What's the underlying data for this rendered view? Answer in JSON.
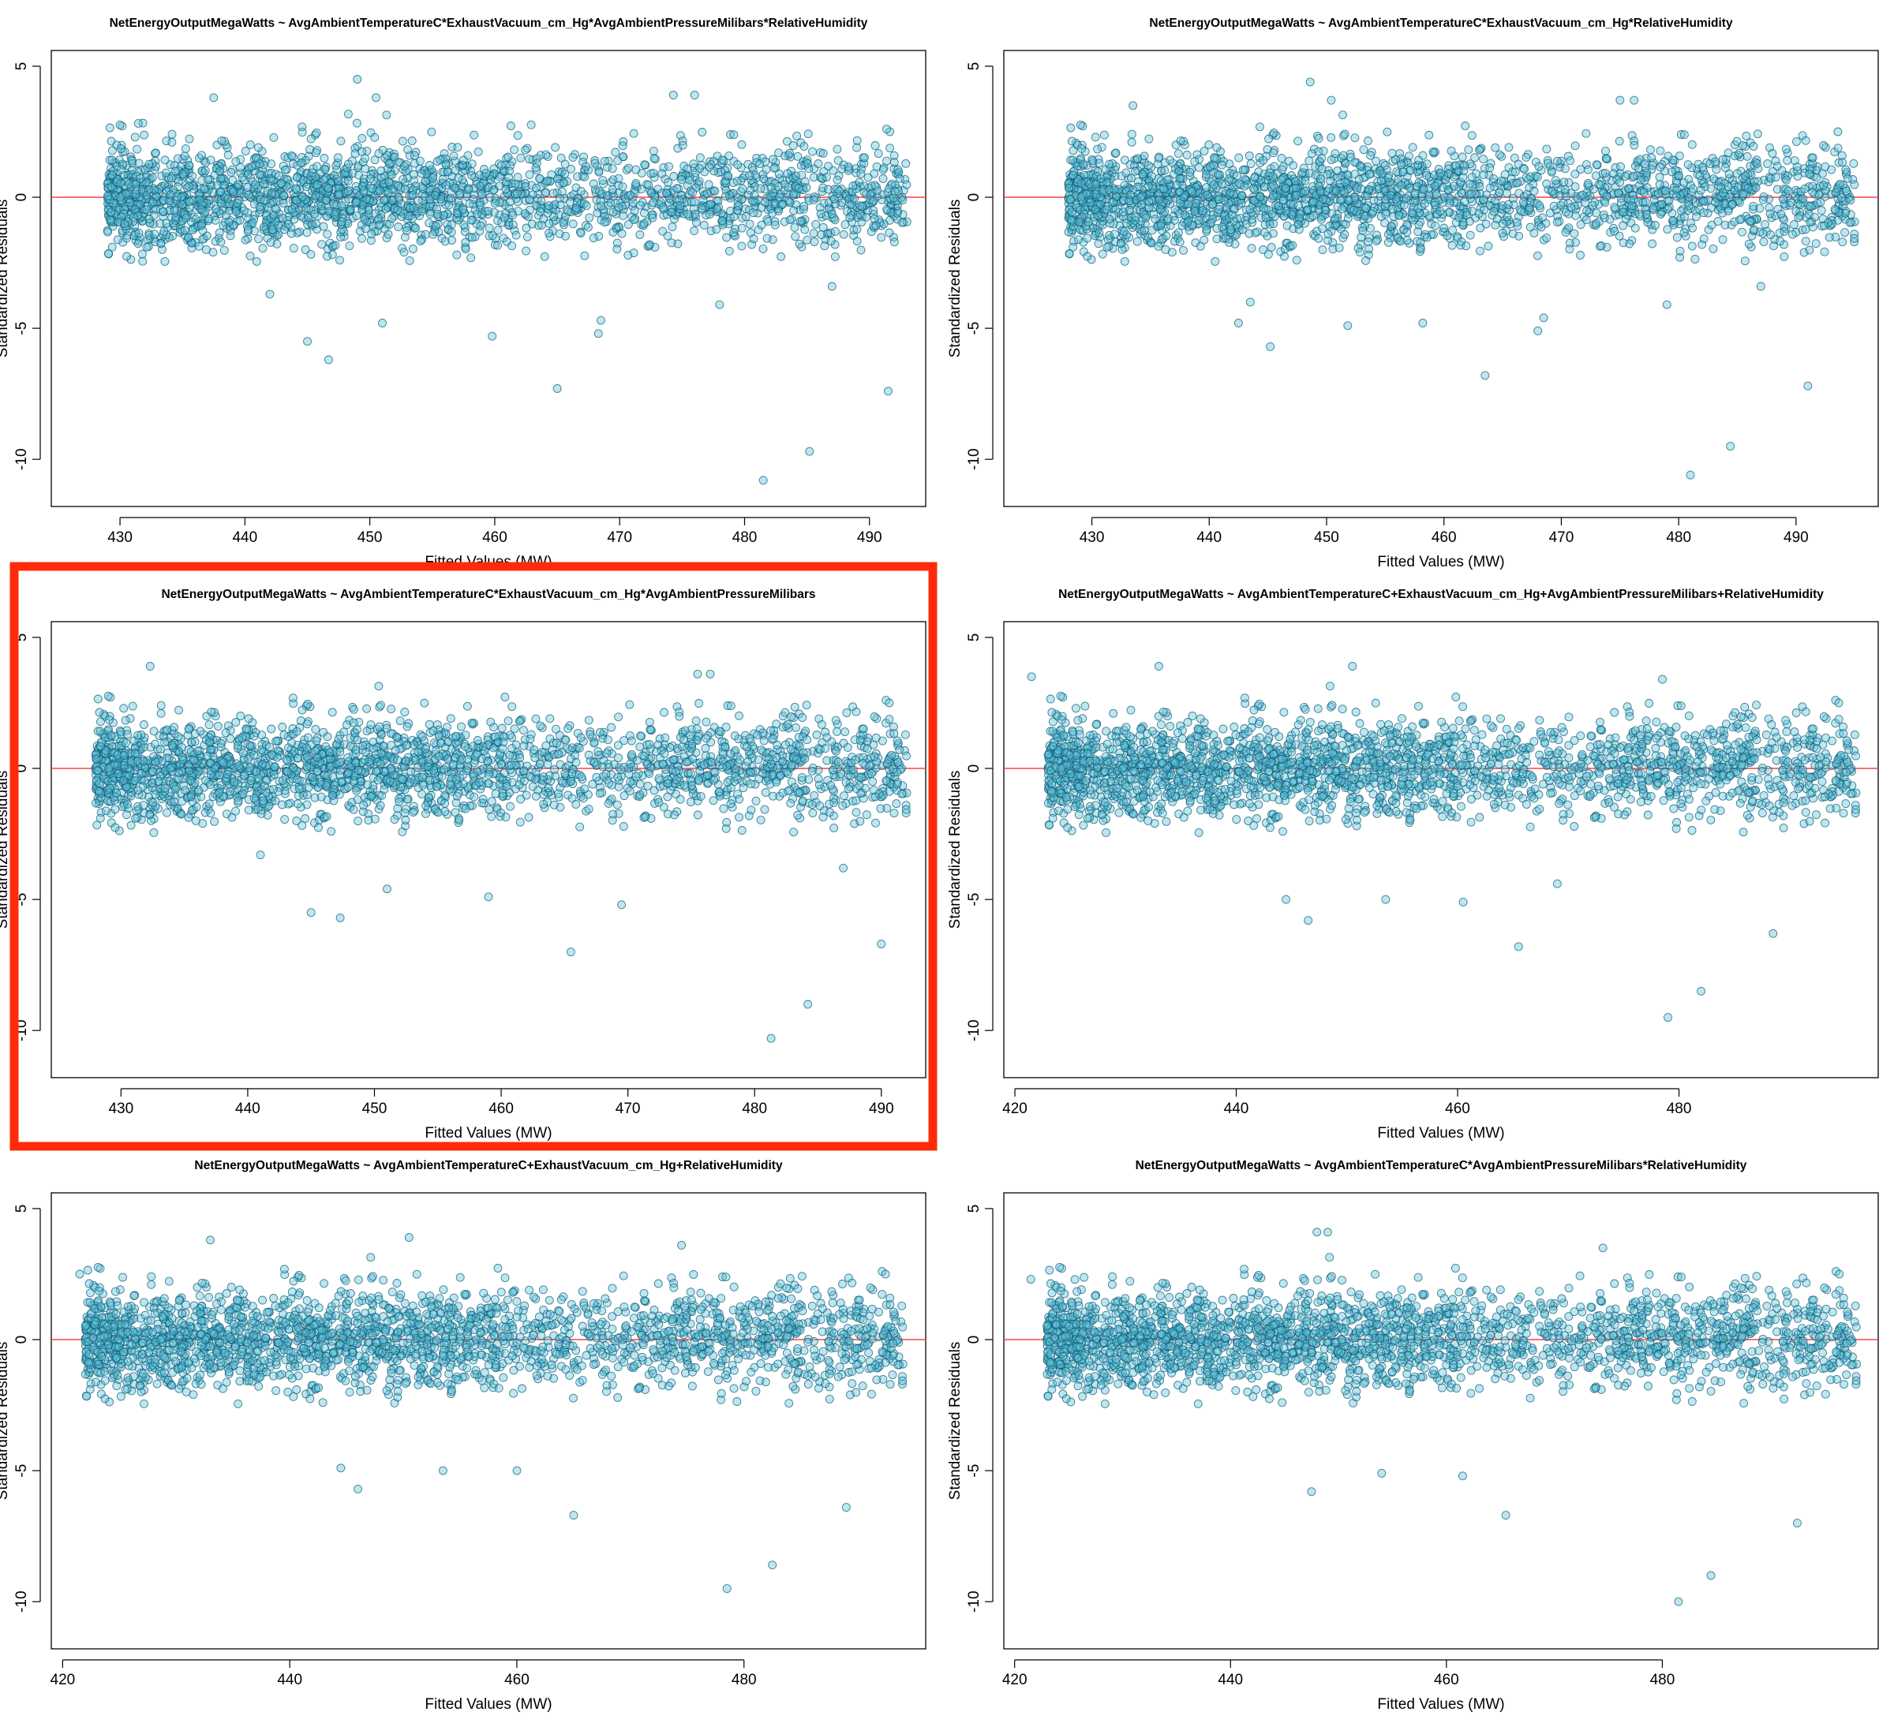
{
  "figure": {
    "highlight_color": "#ff2a0a",
    "point_fill": "#5fc3dc",
    "point_stroke": "#0d5a73",
    "zero_line_color": "#ff4040"
  },
  "chart_data": [
    {
      "type": "scatter",
      "title": "NetEnergyOutputMegaWatts ~ AvgAmbientTemperatureC*ExhaustVacuum_cm_Hg*AvgAmbientPressureMilibars*RelativeHumidity",
      "xlabel": "Fitted Values (MW)",
      "ylabel": "Standardized Residuals",
      "xlim": [
        424.5,
        494.5
      ],
      "ylim": [
        -11.8,
        5.6
      ],
      "xticks": [
        430,
        440,
        450,
        460,
        470,
        480,
        490
      ],
      "yticks": [
        5,
        0,
        -5,
        -10
      ],
      "hline": 0,
      "highlighted": false,
      "cloud": {
        "x_range": [
          429,
          493
        ],
        "band_sd": 0.95,
        "n_points": 2400
      },
      "outliers": [
        [
          437.5,
          3.8
        ],
        [
          442,
          -3.7
        ],
        [
          445,
          -5.5
        ],
        [
          446.7,
          -6.2
        ],
        [
          449,
          4.5
        ],
        [
          450.5,
          3.8
        ],
        [
          451,
          -4.8
        ],
        [
          459.8,
          -5.3
        ],
        [
          465,
          -7.3
        ],
        [
          468.3,
          -5.2
        ],
        [
          468.5,
          -4.7
        ],
        [
          474.3,
          3.9
        ],
        [
          476,
          3.9
        ],
        [
          478,
          -4.1
        ],
        [
          481.5,
          -10.8
        ],
        [
          485.2,
          -9.7
        ],
        [
          487,
          -3.4
        ],
        [
          491.5,
          -7.4
        ]
      ]
    },
    {
      "type": "scatter",
      "title": "NetEnergyOutputMegaWatts ~ AvgAmbientTemperatureC*ExhaustVacuum_cm_Hg*RelativeHumidity",
      "xlabel": "Fitted Values (MW)",
      "ylabel": "Standardized Residuals",
      "xlim": [
        422.5,
        497
      ],
      "ylim": [
        -11.8,
        5.6
      ],
      "xticks": [
        430,
        440,
        450,
        460,
        470,
        480,
        490
      ],
      "yticks": [
        5,
        0,
        -5,
        -10
      ],
      "hline": 0,
      "highlighted": false,
      "cloud": {
        "x_range": [
          428,
          495
        ],
        "band_sd": 0.95,
        "n_points": 2400
      },
      "outliers": [
        [
          433.5,
          3.5
        ],
        [
          442.5,
          -4.8
        ],
        [
          443.5,
          -4
        ],
        [
          445.2,
          -5.7
        ],
        [
          448.6,
          4.4
        ],
        [
          450.4,
          3.7
        ],
        [
          451.8,
          -4.9
        ],
        [
          458.2,
          -4.8
        ],
        [
          463.5,
          -6.8
        ],
        [
          468.5,
          -4.6
        ],
        [
          468,
          -5.1
        ],
        [
          475,
          3.7
        ],
        [
          476.2,
          3.7
        ],
        [
          479,
          -4.1
        ],
        [
          481,
          -10.6
        ],
        [
          484.4,
          -9.5
        ],
        [
          491,
          -7.2
        ],
        [
          487,
          -3.4
        ]
      ]
    },
    {
      "type": "scatter",
      "title": "NetEnergyOutputMegaWatts ~ AvgAmbientTemperatureC*ExhaustVacuum_cm_Hg*AvgAmbientPressureMilibars",
      "xlabel": "Fitted Values (MW)",
      "ylabel": "Standardized Residuals",
      "xlim": [
        424.5,
        493.5
      ],
      "ylim": [
        -11.8,
        5.6
      ],
      "xticks": [
        430,
        440,
        450,
        460,
        470,
        480,
        490
      ],
      "yticks": [
        5,
        0,
        -5,
        -10
      ],
      "hline": 0,
      "highlighted": true,
      "cloud": {
        "x_range": [
          428,
          492
        ],
        "band_sd": 0.95,
        "n_points": 2400
      },
      "outliers": [
        [
          432.3,
          3.9
        ],
        [
          441,
          -3.3
        ],
        [
          445,
          -5.5
        ],
        [
          447.3,
          -5.7
        ],
        [
          451,
          -4.6
        ],
        [
          459,
          -4.9
        ],
        [
          465.5,
          -7.0
        ],
        [
          469.5,
          -5.2
        ],
        [
          475.5,
          3.6
        ],
        [
          476.5,
          3.6
        ],
        [
          481.3,
          -10.3
        ],
        [
          484.2,
          -9.0
        ],
        [
          487,
          -3.8
        ],
        [
          490,
          -6.7
        ]
      ]
    },
    {
      "type": "scatter",
      "title": "NetEnergyOutputMegaWatts ~ AvgAmbientTemperatureC+ExhaustVacuum_cm_Hg+AvgAmbientPressureMilibars+RelativeHumidity",
      "xlabel": "Fitted Values (MW)",
      "ylabel": "Standardized Residuals",
      "xlim": [
        419,
        498
      ],
      "ylim": [
        -11.8,
        5.6
      ],
      "xticks": [
        420,
        440,
        460,
        480
      ],
      "yticks": [
        5,
        0,
        -5,
        -10
      ],
      "hline": 0,
      "highlighted": false,
      "cloud": {
        "x_range": [
          423,
          496
        ],
        "band_sd": 0.95,
        "n_points": 2400
      },
      "outliers": [
        [
          421.5,
          3.5
        ],
        [
          433,
          3.9
        ],
        [
          444.5,
          -5
        ],
        [
          446.5,
          -5.8
        ],
        [
          450.5,
          3.9
        ],
        [
          453.5,
          -5
        ],
        [
          460.5,
          -5.1
        ],
        [
          465.5,
          -6.8
        ],
        [
          469,
          -4.4
        ],
        [
          478.5,
          3.4
        ],
        [
          479,
          -9.5
        ],
        [
          482,
          -8.5
        ],
        [
          488.5,
          -6.3
        ]
      ]
    },
    {
      "type": "scatter",
      "title": "NetEnergyOutputMegaWatts ~ AvgAmbientTemperatureC+ExhaustVacuum_cm_Hg+RelativeHumidity",
      "xlabel": "Fitted Values (MW)",
      "ylabel": "Standardized Residuals",
      "xlim": [
        419,
        496
      ],
      "ylim": [
        -11.8,
        5.6
      ],
      "xticks": [
        420,
        440,
        460,
        480
      ],
      "yticks": [
        5,
        0,
        -5,
        -10
      ],
      "hline": 0,
      "highlighted": false,
      "cloud": {
        "x_range": [
          422,
          494
        ],
        "band_sd": 0.95,
        "n_points": 2400
      },
      "outliers": [
        [
          421.5,
          2.5
        ],
        [
          433,
          3.8
        ],
        [
          444.5,
          -4.9
        ],
        [
          446,
          -5.7
        ],
        [
          450.5,
          3.9
        ],
        [
          453.5,
          -5
        ],
        [
          460,
          -5
        ],
        [
          465,
          -6.7
        ],
        [
          474.5,
          3.6
        ],
        [
          478.5,
          -9.5
        ],
        [
          482.5,
          -8.6
        ],
        [
          489,
          -6.4
        ]
      ]
    },
    {
      "type": "scatter",
      "title": "NetEnergyOutputMegaWatts ~ AvgAmbientTemperatureC*AvgAmbientPressureMilibars*RelativeHumidity",
      "xlabel": "Fitted Values (MW)",
      "ylabel": "Standardized Residuals",
      "xlim": [
        419,
        500
      ],
      "ylim": [
        -11.8,
        5.6
      ],
      "xticks": [
        420,
        440,
        460,
        480
      ],
      "yticks": [
        5,
        0,
        -5,
        -10
      ],
      "hline": 0,
      "highlighted": false,
      "cloud": {
        "x_range": [
          423,
          498
        ],
        "band_sd": 0.95,
        "n_points": 2400
      },
      "outliers": [
        [
          421.5,
          2.3
        ],
        [
          447.5,
          -5.8
        ],
        [
          448,
          4.1
        ],
        [
          449,
          4.1
        ],
        [
          454,
          -5.1
        ],
        [
          461.5,
          -5.2
        ],
        [
          465.5,
          -6.7
        ],
        [
          474.5,
          3.5
        ],
        [
          481.5,
          -10.0
        ],
        [
          484.5,
          -9.0
        ],
        [
          492.5,
          -7.0
        ]
      ]
    }
  ]
}
